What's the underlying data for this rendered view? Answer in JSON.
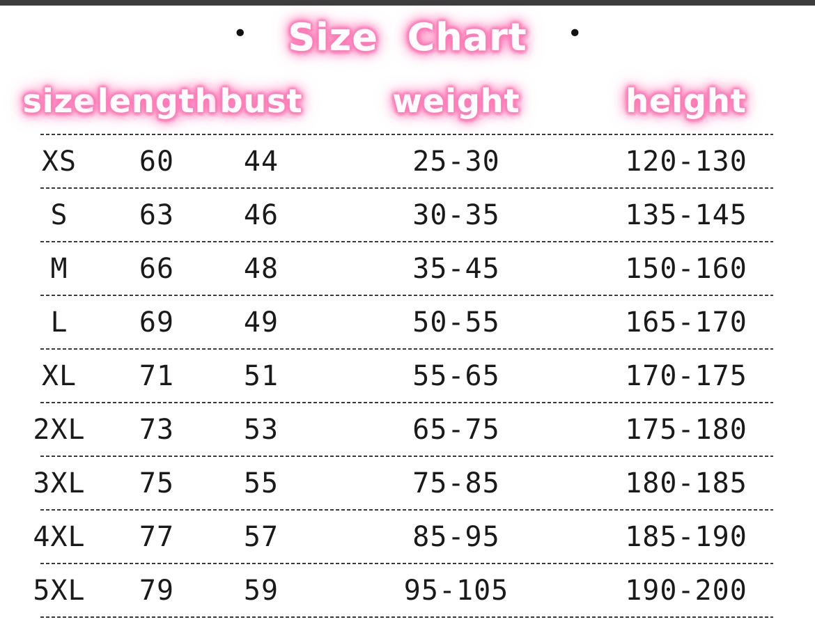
{
  "title_row": {
    "bullet": "•"
  },
  "chart_data": {
    "type": "table",
    "title": "Size Chart",
    "columns": [
      "size",
      "length",
      "bust",
      "weight",
      "height"
    ],
    "rows": [
      [
        "XS",
        "60",
        "44",
        "25-30",
        "120-130"
      ],
      [
        "S",
        "63",
        "46",
        "30-35",
        "135-145"
      ],
      [
        "M",
        "66",
        "48",
        "35-45",
        "150-160"
      ],
      [
        "L",
        "69",
        "49",
        "50-55",
        "165-170"
      ],
      [
        "XL",
        "71",
        "51",
        "55-65",
        "170-175"
      ],
      [
        "2XL",
        "73",
        "53",
        "65-75",
        "175-180"
      ],
      [
        "3XL",
        "75",
        "55",
        "75-85",
        "180-185"
      ],
      [
        "4XL",
        "77",
        "57",
        "85-95",
        "185-190"
      ],
      [
        "5XL",
        "79",
        "59",
        "95-105",
        "190-200"
      ]
    ]
  },
  "colors": {
    "glow_pink": "#ff69b4",
    "text": "#1a1a1a",
    "top_bar": "#3d3d3d",
    "background": "#ffffff"
  }
}
